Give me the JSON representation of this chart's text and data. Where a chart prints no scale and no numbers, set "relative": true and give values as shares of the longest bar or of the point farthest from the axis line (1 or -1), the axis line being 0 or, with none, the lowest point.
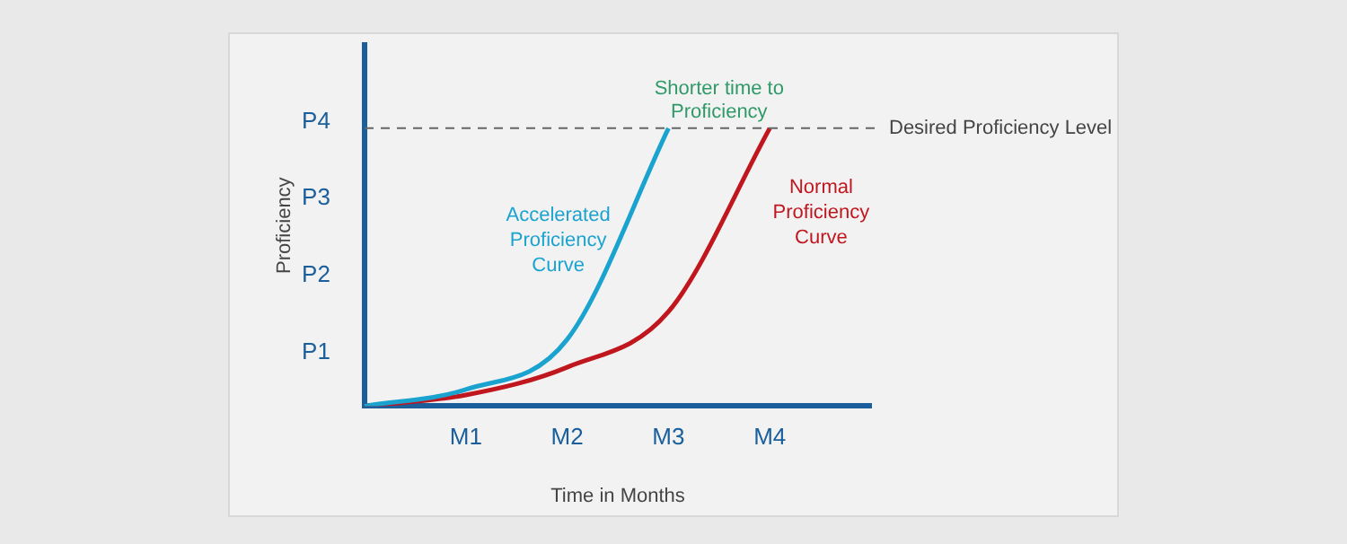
{
  "chart_data": {
    "type": "line",
    "xlabel": "Time in Months",
    "ylabel": "Proficiency",
    "marker": "none",
    "relative": true,
    "categories": [
      null,
      "M1",
      "M2",
      "M3",
      "M4",
      null
    ],
    "series": [
      {
        "name": "Accelerated Proficiency Curve",
        "color": "#1ba3cf",
        "values": [
          0,
          0.06,
          0.24,
          1,
          null,
          null
        ]
      },
      {
        "name": "Normal Proficiency Curve",
        "color": "#c0161e",
        "values": [
          0,
          0.04,
          0.14,
          0.34,
          1,
          null
        ]
      }
    ],
    "ref_lines": [
      {
        "axis": "y",
        "value": 1,
        "label": "Desired Proficiency Level",
        "color": "#666666",
        "line_style": "dashed"
      }
    ],
    "annotations": [
      "Shorter time to Proficiency",
      "P1",
      "P2",
      "P3",
      "P4"
    ]
  }
}
